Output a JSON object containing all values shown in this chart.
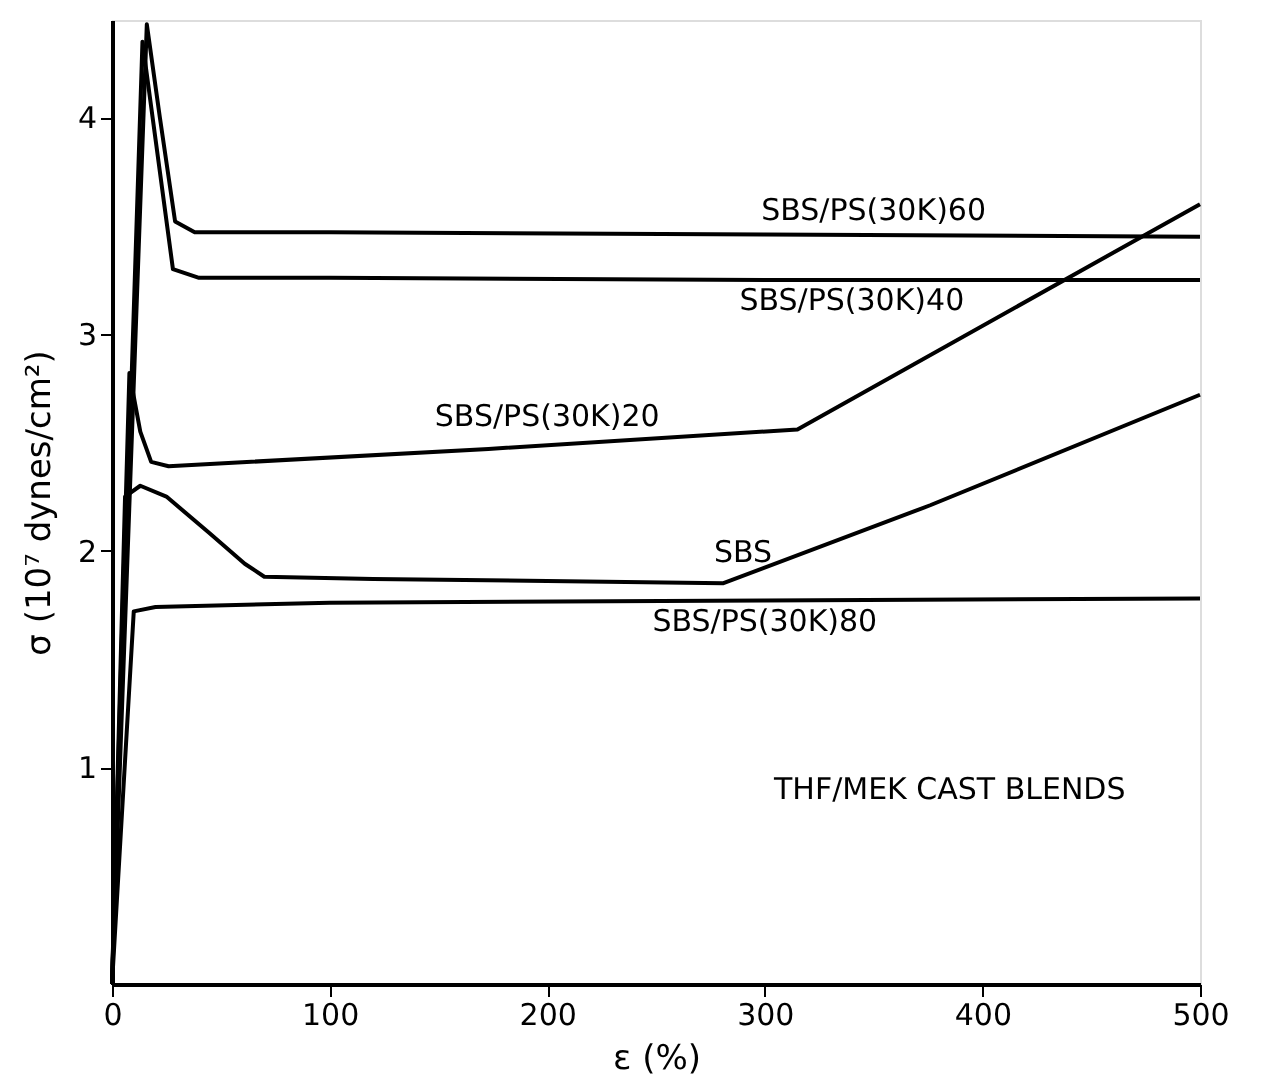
{
  "chart_data": {
    "type": "line",
    "xlabel": "ε (%)",
    "ylabel": "σ (10⁷ dynes/cm²)",
    "xlim": [
      0,
      500
    ],
    "xticks": [
      0,
      100,
      200,
      300,
      400,
      500
    ],
    "ylim": [
      0,
      4.45
    ],
    "yticks": [
      1,
      2,
      3,
      4
    ],
    "grid": false,
    "legend": false,
    "marker": "none",
    "line_style": "solid",
    "annotations": [
      "THF/MEK CAST BLENDS"
    ],
    "series": [
      {
        "name": "SBS/PS(30K)60",
        "color": "#000000",
        "x": [
          0,
          16,
          22,
          29,
          38,
          100,
          300,
          500
        ],
        "values": [
          0,
          4.43,
          4.0,
          3.52,
          3.47,
          3.47,
          3.46,
          3.45
        ]
      },
      {
        "name": "SBS/PS(30K)40",
        "color": "#000000",
        "x": [
          0,
          14,
          20,
          28,
          40,
          100,
          300,
          500
        ],
        "values": [
          0,
          4.35,
          3.9,
          3.3,
          3.26,
          3.26,
          3.25,
          3.25
        ]
      },
      {
        "name": "SBS/PS(30K)20",
        "color": "#000000",
        "x": [
          0,
          8,
          13,
          18,
          26,
          173,
          315,
          500
        ],
        "values": [
          0,
          2.82,
          2.55,
          2.41,
          2.39,
          2.47,
          2.56,
          3.6
        ]
      },
      {
        "name": "SBS",
        "color": "#000000",
        "x": [
          0,
          6,
          13,
          25,
          45,
          61,
          70,
          120,
          281,
          376,
          500
        ],
        "values": [
          0,
          2.25,
          2.3,
          2.25,
          2.08,
          1.94,
          1.88,
          1.87,
          1.85,
          2.21,
          2.72
        ]
      },
      {
        "name": "SBS/PS(30K)80",
        "color": "#000000",
        "x": [
          0,
          10,
          20,
          100,
          300,
          500
        ],
        "values": [
          0,
          1.72,
          1.74,
          1.76,
          1.77,
          1.78
        ]
      }
    ]
  }
}
